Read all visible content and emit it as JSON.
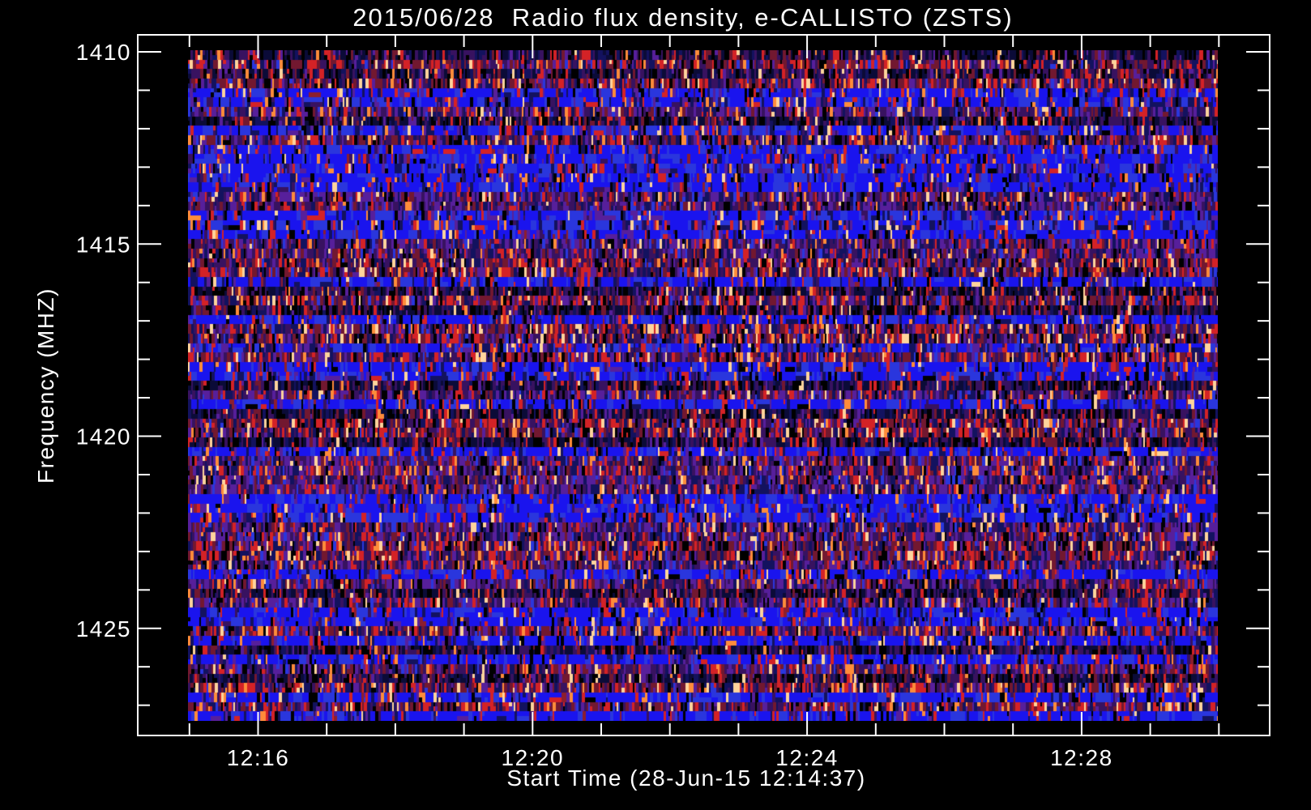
{
  "chart_data": {
    "type": "heatmap",
    "title": "2015/06/28  Radio flux density, e-CALLISTO (ZSTS)",
    "xlabel": "Start Time (28-Jun-15 12:14:37)",
    "ylabel": "Frequency (MHZ)",
    "x_axis": {
      "unit": "time of day (HH:MM)",
      "major_ticks": [
        {
          "label": "12:16",
          "minute": 16
        },
        {
          "label": "12:20",
          "minute": 20
        },
        {
          "label": "12:24",
          "minute": 24
        },
        {
          "label": "12:28",
          "minute": 28
        }
      ],
      "minor_ticks_minutes": {
        "from": 15,
        "to": 30,
        "step": 1
      },
      "data_range_minutes": [
        14.95,
        30.0
      ]
    },
    "y_axis": {
      "unit": "MHz",
      "direction": "increasing-downward",
      "major_ticks": [
        {
          "label": "1410",
          "mhz": 1410
        },
        {
          "label": "1415",
          "mhz": 1415
        },
        {
          "label": "1420",
          "mhz": 1420
        },
        {
          "label": "1425",
          "mhz": 1425
        }
      ],
      "minor_ticks_mhz": {
        "from": 1410,
        "to": 1427,
        "step": 1
      },
      "data_range_mhz": [
        1410.0,
        1427.5
      ]
    },
    "colors": {
      "background": "#000000",
      "axis": "#ffffff",
      "text": "#ffffff",
      "noise_palette": {
        "bright_blue": "#1a14ee",
        "blue": "#2a36dd",
        "navy": "#13125f",
        "dark_navy": "#0b0b38",
        "dark_purple": "#381260",
        "purple": "#571f9b",
        "maroon": "#721830",
        "dark_red": "#8c1e2e",
        "red": "#d42226",
        "orange": "#ff8c3a",
        "cream": "#ffd49c",
        "black": "#000000"
      }
    },
    "noise": {
      "row_count": 71,
      "seed": 1437,
      "description": "broadband RFI noise texture with horizontal frequency-channel banding"
    },
    "legend": null
  }
}
